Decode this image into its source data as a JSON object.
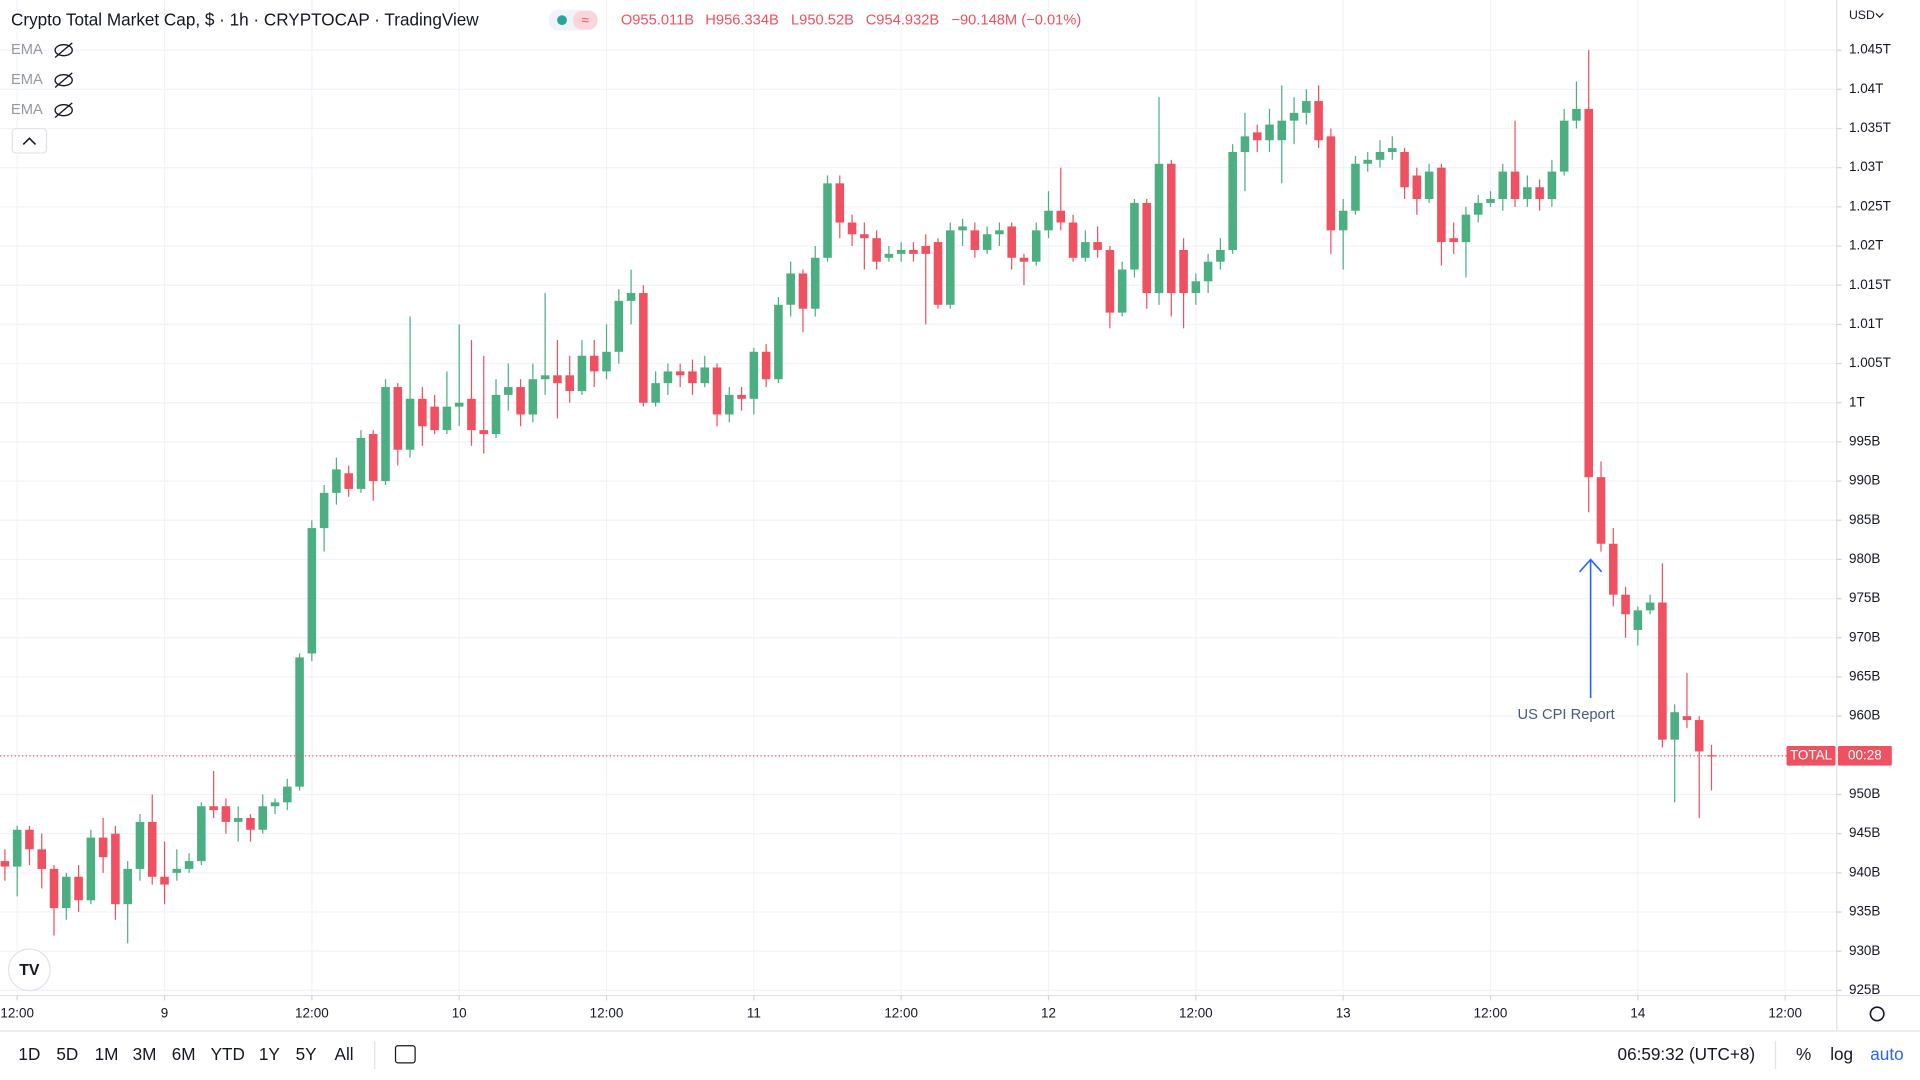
{
  "header": {
    "title": "Crypto Total Market Cap, $ · 1h · CRYPTOCAP · TradingView",
    "open": "O955.011B",
    "high": "H956.334B",
    "low": "L950.52B",
    "close": "C954.932B",
    "change": "−90.148M (−0.01%)"
  },
  "indicators": [
    "EMA",
    "EMA",
    "EMA"
  ],
  "price_axis": {
    "currency": "USD",
    "symbol": "TOTAL",
    "countdown": "00:28"
  },
  "toolbar": {
    "ranges": [
      "1D",
      "5D",
      "1M",
      "3M",
      "6M",
      "YTD",
      "1Y",
      "5Y",
      "All"
    ],
    "clock": "06:59:32 (UTC+8)",
    "options": [
      "%",
      "log",
      "auto"
    ]
  },
  "chart_data": {
    "type": "candlestick",
    "annotation": "US CPI Report",
    "up_color": "#4caf82",
    "down_color": "#ef5161",
    "grid": true,
    "xlim": [
      -0.4,
      149.2
    ],
    "ylim": [
      924.5,
      1051.4
    ],
    "xticks": [
      {
        "value": 1,
        "label": "12:00"
      },
      {
        "value": 13,
        "label": "9"
      },
      {
        "value": 25,
        "label": "12:00"
      },
      {
        "value": 37,
        "label": "10"
      },
      {
        "value": 49,
        "label": "12:00"
      },
      {
        "value": 61,
        "label": "11"
      },
      {
        "value": 73,
        "label": "12:00"
      },
      {
        "value": 85,
        "label": "12"
      },
      {
        "value": 97,
        "label": "12:00"
      },
      {
        "value": 109,
        "label": "13"
      },
      {
        "value": 121,
        "label": "12:00"
      },
      {
        "value": 133,
        "label": "14"
      },
      {
        "value": 145,
        "label": "12:00"
      }
    ],
    "yticks": [
      {
        "value": 925,
        "label": "925B"
      },
      {
        "value": 930,
        "label": "930B"
      },
      {
        "value": 935,
        "label": "935B"
      },
      {
        "value": 940,
        "label": "940B"
      },
      {
        "value": 945,
        "label": "945B"
      },
      {
        "value": 950,
        "label": "950B"
      },
      {
        "value": 955,
        "label": "955B"
      },
      {
        "value": 960,
        "label": "960B"
      },
      {
        "value": 965,
        "label": "965B"
      },
      {
        "value": 970,
        "label": "970B"
      },
      {
        "value": 975,
        "label": "975B"
      },
      {
        "value": 980,
        "label": "980B"
      },
      {
        "value": 985,
        "label": "985B"
      },
      {
        "value": 990,
        "label": "990B"
      },
      {
        "value": 995,
        "label": "995B"
      },
      {
        "value": 1000,
        "label": "1T"
      },
      {
        "value": 1005,
        "label": "1.005T"
      },
      {
        "value": 1010,
        "label": "1.01T"
      },
      {
        "value": 1015,
        "label": "1.015T"
      },
      {
        "value": 1020,
        "label": "1.02T"
      },
      {
        "value": 1025,
        "label": "1.025T"
      },
      {
        "value": 1030,
        "label": "1.03T"
      },
      {
        "value": 1035,
        "label": "1.035T"
      },
      {
        "value": 1040,
        "label": "1.04T"
      },
      {
        "value": 1045,
        "label": "1.045T"
      }
    ],
    "open": [
      941.5,
      940.8,
      945.5,
      943,
      940.5,
      935.5,
      939.5,
      936.5,
      944.5,
      945,
      936,
      940.5,
      946.5,
      939.5,
      940,
      940.5,
      941.5,
      948.5,
      948.5,
      946.5,
      947,
      945.5,
      948.5,
      949,
      951,
      968,
      984,
      988.5,
      991,
      989,
      996,
      990,
      1002,
      994,
      1000.5,
      999.5,
      996.5,
      999.5,
      1000.5,
      996.5,
      996,
      1001,
      1002,
      998.5,
      1003,
      1003.5,
      1003.5,
      1001.5,
      1006,
      1004,
      1006.5,
      1013,
      1014,
      1000,
      1002.5,
      1004,
      1004,
      1002.5,
      1004.5,
      998.5,
      1001,
      1000.5,
      1006.5,
      1003,
      1012.5,
      1016.5,
      1012,
      1018.5,
      1028,
      1023,
      1021.5,
      1021,
      1018.5,
      1019,
      1019.5,
      1020,
      1020.5,
      1012.5,
      1022,
      1022,
      1019.5,
      1021.5,
      1022.5,
      1018.5,
      1018,
      1022,
      1024.5,
      1023,
      1018.5,
      1020.5,
      1019.5,
      1011.5,
      1017,
      1025.5,
      1014,
      1030.5,
      1019.5,
      1014,
      1015.5,
      1018,
      1019.5,
      1032,
      1034.5,
      1033.5,
      1033.5,
      1036,
      1037,
      1038.5,
      1034,
      1022,
      1024.5,
      1030.5,
      1031,
      1032,
      1032,
      1029,
      1026,
      1030,
      1021,
      1020.5,
      1024,
      1025.5,
      1026,
      1029.5,
      1026,
      1027.5,
      1026,
      1029.5,
      1036,
      1037.5,
      990.5,
      982,
      975.5,
      971,
      973.5,
      974.5,
      957,
      960,
      959.5,
      955.011
    ],
    "high": [
      943,
      946,
      946,
      945,
      941,
      940,
      941,
      945.5,
      947,
      946,
      941.5,
      947.5,
      950,
      944,
      943,
      942.5,
      949,
      953,
      949.5,
      948.5,
      947.5,
      950,
      949.5,
      952,
      968,
      985,
      989.5,
      993,
      992,
      996.5,
      996.5,
      1003,
      1002.5,
      1011,
      1002,
      1001,
      1004,
      1010,
      1008,
      1006,
      1003,
      1005,
      1003,
      1005,
      1014,
      1008,
      1006,
      1008,
      1008,
      1010,
      1014.5,
      1017,
      1015,
      1004,
      1005,
      1005,
      1005.5,
      1006,
      1005,
      1002,
      1002,
      1007,
      1007.5,
      1013.5,
      1018,
      1017,
      1020,
      1029,
      1029,
      1024,
      1023,
      1022,
      1020,
      1020.5,
      1020.5,
      1021.5,
      1021,
      1023,
      1023.5,
      1023,
      1022.5,
      1023,
      1023,
      1019,
      1023,
      1027,
      1030,
      1024,
      1022,
      1022.5,
      1020,
      1018,
      1026,
      1026,
      1039,
      1031,
      1021,
      1016.5,
      1019,
      1021,
      1033,
      1037,
      1035.5,
      1037.5,
      1040.5,
      1039,
      1040,
      1040.5,
      1035,
      1026,
      1031.5,
      1032,
      1033.5,
      1034,
      1032.5,
      1030,
      1030.5,
      1030.5,
      1023,
      1025,
      1026.5,
      1027,
      1030.5,
      1036,
      1029,
      1028.5,
      1031,
      1037.5,
      1041,
      1045,
      992.5,
      984,
      976.5,
      974,
      975.5,
      979.5,
      961.5,
      965.5,
      960,
      956.334
    ],
    "low": [
      939,
      937,
      941,
      938,
      932,
      934,
      935,
      936,
      940,
      934,
      931,
      939,
      938.5,
      936,
      939,
      940,
      941,
      947,
      945,
      944,
      944,
      945,
      947.5,
      948,
      950.5,
      967,
      981,
      987,
      988,
      988.5,
      987.5,
      989.5,
      992,
      993,
      994.5,
      996,
      996,
      997,
      994.5,
      993.5,
      995.5,
      999,
      997,
      997.5,
      1001,
      998,
      1000,
      1001,
      1002,
      1003,
      1005,
      1010,
      999.5,
      999.5,
      1001,
      1002,
      1001,
      1002,
      997,
      997.5,
      999,
      998.5,
      1002,
      1002.5,
      1011,
      1009,
      1011,
      1018,
      1021,
      1020,
      1017,
      1017,
      1018,
      1018,
      1018,
      1010,
      1012,
      1012,
      1020,
      1018.5,
      1019,
      1020,
      1017,
      1015,
      1017.5,
      1021,
      1022,
      1018,
      1018,
      1018.5,
      1009.5,
      1011,
      1016,
      1012,
      1012.5,
      1011,
      1009.5,
      1012.5,
      1014,
      1017,
      1019,
      1027,
      1032,
      1032,
      1028,
      1033,
      1035.5,
      1032.5,
      1019,
      1017,
      1024,
      1029.5,
      1030,
      1031,
      1026,
      1024,
      1025.5,
      1017.5,
      1019,
      1016,
      1023,
      1025,
      1024.5,
      1025,
      1025,
      1024.5,
      1025,
      1029,
      1035,
      986,
      981,
      974,
      970,
      969,
      973,
      956,
      949,
      958.5,
      947,
      950.52
    ],
    "close": [
      940.8,
      945.5,
      943,
      940.5,
      935.5,
      939.5,
      936.5,
      944.5,
      942,
      936,
      940.5,
      946.5,
      939.5,
      938.5,
      940.5,
      941.5,
      948.5,
      948,
      946.5,
      947,
      945.5,
      948.5,
      949,
      951,
      967.5,
      984,
      988.5,
      991.5,
      989,
      995.5,
      990,
      1002,
      994,
      1000.5,
      997,
      996.5,
      999.5,
      1000,
      996.5,
      996,
      1001,
      1002,
      998.5,
      1003,
      1003.5,
      1002.5,
      1001.5,
      1006,
      1004,
      1006.5,
      1013,
      1014,
      1000,
      1002.5,
      1004,
      1003.5,
      1002.5,
      1004.5,
      998.5,
      1001,
      1000.5,
      1006.5,
      1003,
      1012.5,
      1016.5,
      1012,
      1018.5,
      1028,
      1023,
      1021.5,
      1021,
      1018,
      1019,
      1019.5,
      1019,
      1019,
      1012.5,
      1022,
      1022.5,
      1019.5,
      1021.5,
      1022,
      1018.5,
      1018,
      1022,
      1024.5,
      1023,
      1018.5,
      1020.5,
      1019.5,
      1011.5,
      1017,
      1025.5,
      1014,
      1030.5,
      1014,
      1014,
      1015.5,
      1018,
      1019.5,
      1032,
      1034,
      1033.5,
      1035.5,
      1036,
      1037,
      1038.5,
      1033.5,
      1022,
      1024.5,
      1030.5,
      1031,
      1032,
      1032.5,
      1027.5,
      1026,
      1029.5,
      1020.5,
      1020.5,
      1024,
      1025.5,
      1026,
      1029.5,
      1026,
      1027.5,
      1026,
      1029.5,
      1036,
      1037.5,
      990.5,
      982,
      975.5,
      973,
      973.5,
      974.5,
      957,
      960.5,
      959.5,
      955.5,
      954.932
    ]
  }
}
